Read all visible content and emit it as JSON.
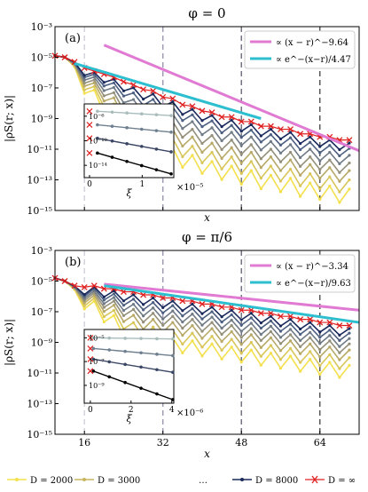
{
  "figure": {
    "legend": [
      {
        "label": "D = 2000",
        "color": "#f4e04d",
        "marker": "circle"
      },
      {
        "label": "D = 3000",
        "color": "#c9b55f",
        "marker": "circle"
      },
      {
        "label": "…",
        "color": "#000000",
        "marker": "none"
      },
      {
        "label": "D = 8000",
        "color": "#1b2a5c",
        "marker": "circle"
      },
      {
        "label": "D = ∞",
        "color": "#e02020",
        "marker": "x"
      }
    ]
  },
  "chart_data": [
    {
      "type": "line",
      "panel_label": "(a)",
      "title": "φ = 0",
      "xlabel": "x",
      "ylabel": "|ρS(r; x)|",
      "yscale": "log",
      "ylim_exp": [
        -15,
        -3
      ],
      "xlim": [
        10,
        72
      ],
      "yticks": [
        "10⁻³",
        "10⁻⁵",
        "10⁻⁷",
        "10⁻⁹",
        "10⁻¹¹",
        "10⁻¹³",
        "10⁻¹⁵"
      ],
      "vlines": [
        16,
        32,
        48,
        64
      ],
      "fit_lines": [
        {
          "label": "∝ (x − r)^−9.64",
          "color": "#e07ad2",
          "x": [
            20,
            72
          ],
          "y_exp": [
            -4.2,
            -11.1
          ]
        },
        {
          "label": "∝ e^−(x−r)/4.47",
          "color": "#2dbfcf",
          "x": [
            14,
            52
          ],
          "y_exp": [
            -5.4,
            -9.0
          ]
        }
      ],
      "series": [
        {
          "name": "D = 2000",
          "offset": -3.2
        },
        {
          "name": "D = 3000",
          "offset": -2.6
        },
        {
          "name": "D = 4000",
          "offset": -2.0
        },
        {
          "name": "D = 5000",
          "offset": -1.5
        },
        {
          "name": "D = 6000",
          "offset": -1.0
        },
        {
          "name": "D = 7000",
          "offset": -0.55
        },
        {
          "name": "D = 8000",
          "offset": -0.2
        },
        {
          "name": "D = ∞",
          "offset": 0.0
        }
      ],
      "profile": {
        "x": [
          10,
          12,
          14,
          16,
          18,
          20,
          22,
          24,
          26,
          28,
          30,
          32,
          34,
          36,
          38,
          40,
          42,
          44,
          46,
          48,
          50,
          52,
          54,
          56,
          58,
          60,
          62,
          64,
          66,
          68,
          70
        ],
        "y_exp": [
          -4.9,
          -5.0,
          -5.3,
          -5.6,
          -5.9,
          -6.0,
          -6.3,
          -6.5,
          -6.8,
          -7.0,
          -7.2,
          -7.5,
          -7.7,
          -8.0,
          -8.2,
          -8.4,
          -8.6,
          -8.8,
          -8.9,
          -9.1,
          -9.2,
          -9.4,
          -9.5,
          -9.6,
          -9.7,
          -9.9,
          -10.0,
          -10.1,
          -10.2,
          -10.3,
          -10.4
        ]
      },
      "inset": {
        "xlabel": "ξ",
        "multiplier": "×10⁻⁵",
        "xticks": [
          "0",
          "1"
        ],
        "yticks": [
          "10⁻⁶",
          "10⁻¹⁰",
          "10⁻¹⁴"
        ],
        "xlim": [
          -0.1,
          1.6
        ],
        "ylim_exp": [
          -16,
          -4
        ],
        "lines": [
          {
            "color": "#a9bcbc",
            "y0_exp": -5.2,
            "y1_exp": -5.9
          },
          {
            "color": "#6e7f90",
            "y0_exp": -7.4,
            "y1_exp": -8.6
          },
          {
            "color": "#3a4664",
            "y0_exp": -9.6,
            "y1_exp": -11.8
          },
          {
            "color": "#000000",
            "y0_exp": -12.0,
            "y1_exp": -15.4
          }
        ]
      }
    },
    {
      "type": "line",
      "panel_label": "(b)",
      "title": "φ = π/6",
      "xlabel": "x",
      "ylabel": "|ρS(r; x)|",
      "yscale": "log",
      "ylim_exp": [
        -15,
        -3
      ],
      "xlim": [
        10,
        72
      ],
      "yticks": [
        "10⁻³",
        "10⁻⁵",
        "10⁻⁷",
        "10⁻⁹",
        "10⁻¹¹",
        "10⁻¹³",
        "10⁻¹⁵"
      ],
      "xticks": [
        "16",
        "32",
        "48",
        "64"
      ],
      "vlines": [
        16,
        32,
        48,
        64
      ],
      "fit_lines": [
        {
          "label": "∝ (x − r)^−3.34",
          "color": "#e07ad2",
          "x": [
            20,
            72
          ],
          "y_exp": [
            -5.2,
            -6.9
          ]
        },
        {
          "label": "∝ e^−(x−r)/9.63",
          "color": "#2dbfcf",
          "x": [
            20,
            72
          ],
          "y_exp": [
            -5.3,
            -7.7
          ]
        }
      ],
      "series": [
        {
          "name": "D = 2000",
          "offset": -2.6
        },
        {
          "name": "D = 3000",
          "offset": -2.1
        },
        {
          "name": "D = 4000",
          "offset": -1.6
        },
        {
          "name": "D = 5000",
          "offset": -1.2
        },
        {
          "name": "D = 6000",
          "offset": -0.85
        },
        {
          "name": "D = 7000",
          "offset": -0.5
        },
        {
          "name": "D = 8000",
          "offset": -0.2
        },
        {
          "name": "D = ∞",
          "offset": 0.0
        }
      ],
      "profile": {
        "x": [
          10,
          12,
          14,
          16,
          18,
          20,
          22,
          24,
          26,
          28,
          30,
          32,
          34,
          36,
          38,
          40,
          42,
          44,
          46,
          48,
          50,
          52,
          54,
          56,
          58,
          60,
          62,
          64,
          66,
          68,
          70
        ],
        "y_exp": [
          -4.8,
          -5.0,
          -5.3,
          -5.3,
          -5.3,
          -5.4,
          -5.5,
          -5.6,
          -5.7,
          -5.8,
          -5.9,
          -6.0,
          -6.1,
          -6.2,
          -6.3,
          -6.4,
          -6.5,
          -6.6,
          -6.7,
          -6.8,
          -6.9,
          -7.0,
          -7.1,
          -7.2,
          -7.3,
          -7.4,
          -7.5,
          -7.6,
          -7.7,
          -7.8,
          -7.9
        ]
      },
      "inset": {
        "xlabel": "ξ",
        "multiplier": "×10⁻⁶",
        "xticks": [
          "0",
          "2",
          "4"
        ],
        "yticks": [
          "10⁻⁵",
          "10⁻⁷",
          "10⁻⁹"
        ],
        "xlim": [
          -0.3,
          4.1
        ],
        "ylim_exp": [
          -10.5,
          -4.3
        ],
        "lines": [
          {
            "color": "#a9bcbc",
            "y0_exp": -5.0,
            "y1_exp": -5.1
          },
          {
            "color": "#6e7f90",
            "y0_exp": -5.9,
            "y1_exp": -6.5
          },
          {
            "color": "#3a4664",
            "y0_exp": -6.8,
            "y1_exp": -7.9
          },
          {
            "color": "#000000",
            "y0_exp": -7.8,
            "y1_exp": -10.2
          }
        ]
      }
    }
  ]
}
